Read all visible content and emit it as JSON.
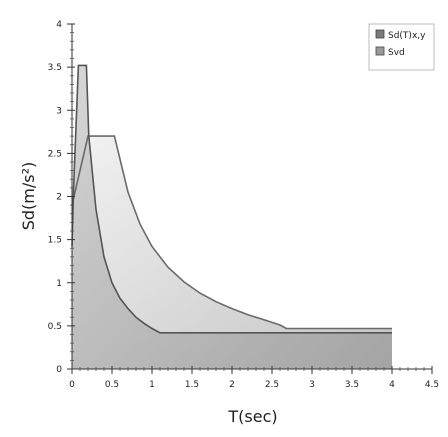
{
  "chart_data": {
    "type": "area",
    "xlabel": "T(sec)",
    "ylabel": "Sd(m/s²)",
    "xlim": [
      0,
      4.5
    ],
    "ylim": [
      0,
      4
    ],
    "x_ticks": [
      "0",
      "0.5",
      "1",
      "1.5",
      "2",
      "2.5",
      "3",
      "3.5",
      "4",
      "4.5"
    ],
    "y_ticks": [
      "0",
      "0.5",
      "1",
      "1.5",
      "2",
      "2.5",
      "3",
      "3.5",
      "4"
    ],
    "legend_position": "top-right",
    "series": [
      {
        "name": "Sd(T)x,y",
        "color": "#7a7a7a",
        "points": [
          [
            0,
            1.42
          ],
          [
            0.02,
            2.1
          ],
          [
            0.08,
            3.52
          ],
          [
            0.18,
            3.52
          ],
          [
            0.21,
            2.7
          ],
          [
            0.3,
            1.85
          ],
          [
            0.4,
            1.3
          ],
          [
            0.5,
            1.0
          ],
          [
            0.6,
            0.82
          ],
          [
            0.7,
            0.7
          ],
          [
            0.8,
            0.6
          ],
          [
            0.9,
            0.53
          ],
          [
            1.0,
            0.47
          ],
          [
            1.1,
            0.42
          ],
          [
            2.0,
            0.42
          ],
          [
            3.0,
            0.42
          ],
          [
            4.0,
            0.42
          ]
        ]
      },
      {
        "name": "Svd",
        "color": "#9a9a9a",
        "points": [
          [
            0,
            1.9
          ],
          [
            0.2,
            2.7
          ],
          [
            0.53,
            2.7
          ],
          [
            0.7,
            2.05
          ],
          [
            0.85,
            1.68
          ],
          [
            1.0,
            1.42
          ],
          [
            1.2,
            1.18
          ],
          [
            1.4,
            1.01
          ],
          [
            1.6,
            0.88
          ],
          [
            1.8,
            0.78
          ],
          [
            2.0,
            0.7
          ],
          [
            2.2,
            0.63
          ],
          [
            2.4,
            0.57
          ],
          [
            2.6,
            0.51
          ],
          [
            2.68,
            0.47
          ],
          [
            3.0,
            0.47
          ],
          [
            4.0,
            0.47
          ]
        ]
      }
    ]
  }
}
